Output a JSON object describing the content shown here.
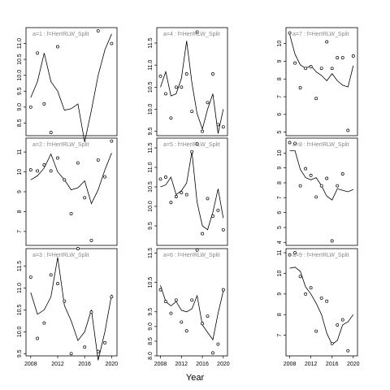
{
  "figure": {
    "xlabel": "Year"
  },
  "chart_data": [
    {
      "type": "scatter",
      "title": "a=1 : f=HerIRLW_Split",
      "x_ticks": [
        2008,
        2012,
        2016,
        2020
      ],
      "ylim": [
        8.1,
        11.5
      ],
      "yticks": [
        8.5,
        9.0,
        9.5,
        10.0,
        10.5,
        11.0
      ],
      "points": [
        {
          "x": 2008,
          "y": 9.0
        },
        {
          "x": 2009,
          "y": 10.7
        },
        {
          "x": 2010,
          "y": 9.1
        },
        {
          "x": 2011,
          "y": 8.2
        },
        {
          "x": 2012,
          "y": 10.9
        },
        {
          "x": 2018,
          "y": 11.4
        },
        {
          "x": 2020,
          "y": 11.0
        }
      ],
      "line": [
        {
          "x": 2008,
          "y": 9.3
        },
        {
          "x": 2009,
          "y": 9.8
        },
        {
          "x": 2010,
          "y": 10.7
        },
        {
          "x": 2011,
          "y": 9.8
        },
        {
          "x": 2012,
          "y": 9.5
        },
        {
          "x": 2013,
          "y": 8.9
        },
        {
          "x": 2014,
          "y": 8.95
        },
        {
          "x": 2015,
          "y": 9.1
        },
        {
          "x": 2016,
          "y": 7.9
        },
        {
          "x": 2017,
          "y": 8.9
        },
        {
          "x": 2018,
          "y": 10.0
        },
        {
          "x": 2019,
          "y": 10.8
        },
        {
          "x": 2020,
          "y": 11.3
        }
      ]
    },
    {
      "type": "scatter",
      "title": "a=4 : f=HerIRLW_Split",
      "x_ticks": [
        2008,
        2012,
        2016,
        2020
      ],
      "ylim": [
        9.4,
        11.85
      ],
      "yticks": [
        9.5,
        10.0,
        10.5,
        11.0,
        11.5
      ],
      "points": [
        {
          "x": 2008,
          "y": 10.75
        },
        {
          "x": 2009,
          "y": 10.35
        },
        {
          "x": 2010,
          "y": 9.8
        },
        {
          "x": 2011,
          "y": 10.5
        },
        {
          "x": 2012,
          "y": 10.5
        },
        {
          "x": 2013,
          "y": 10.8
        },
        {
          "x": 2014,
          "y": 9.95
        },
        {
          "x": 2015,
          "y": 11.75
        },
        {
          "x": 2016,
          "y": 9.5
        },
        {
          "x": 2017,
          "y": 10.15
        },
        {
          "x": 2018,
          "y": 10.8
        },
        {
          "x": 2019,
          "y": 9.65
        },
        {
          "x": 2020,
          "y": 9.6
        }
      ],
      "line": [
        {
          "x": 2008,
          "y": 10.5
        },
        {
          "x": 2009,
          "y": 10.85
        },
        {
          "x": 2010,
          "y": 10.3
        },
        {
          "x": 2011,
          "y": 10.35
        },
        {
          "x": 2012,
          "y": 10.7
        },
        {
          "x": 2013,
          "y": 11.55
        },
        {
          "x": 2014,
          "y": 10.6
        },
        {
          "x": 2015,
          "y": 9.9
        },
        {
          "x": 2016,
          "y": 9.55
        },
        {
          "x": 2017,
          "y": 10.0
        },
        {
          "x": 2018,
          "y": 10.35
        },
        {
          "x": 2019,
          "y": 9.45
        },
        {
          "x": 2020,
          "y": 10.0
        }
      ]
    },
    {
      "type": "scatter",
      "title": "a=7 : f=HerIRLW_Split",
      "x_ticks": [
        2008,
        2012,
        2016,
        2020
      ],
      "ylim": [
        4.8,
        10.9
      ],
      "yticks": [
        5,
        6,
        7,
        8,
        9,
        10
      ],
      "points": [
        {
          "x": 2008,
          "y": 10.6
        },
        {
          "x": 2009,
          "y": 8.9
        },
        {
          "x": 2010,
          "y": 7.5
        },
        {
          "x": 2011,
          "y": 8.6
        },
        {
          "x": 2012,
          "y": 8.7
        },
        {
          "x": 2013,
          "y": 6.9
        },
        {
          "x": 2014,
          "y": 8.6
        },
        {
          "x": 2015,
          "y": 10.1
        },
        {
          "x": 2016,
          "y": 8.6
        },
        {
          "x": 2017,
          "y": 9.2
        },
        {
          "x": 2018,
          "y": 9.2
        },
        {
          "x": 2019,
          "y": 5.1
        },
        {
          "x": 2020,
          "y": 9.3
        }
      ],
      "line": [
        {
          "x": 2008,
          "y": 10.5
        },
        {
          "x": 2009,
          "y": 9.4
        },
        {
          "x": 2010,
          "y": 8.8
        },
        {
          "x": 2011,
          "y": 8.6
        },
        {
          "x": 2012,
          "y": 8.75
        },
        {
          "x": 2013,
          "y": 8.4
        },
        {
          "x": 2014,
          "y": 8.2
        },
        {
          "x": 2015,
          "y": 7.9
        },
        {
          "x": 2016,
          "y": 8.3
        },
        {
          "x": 2017,
          "y": 7.9
        },
        {
          "x": 2018,
          "y": 7.65
        },
        {
          "x": 2019,
          "y": 7.55
        },
        {
          "x": 2020,
          "y": 8.75
        }
      ]
    },
    {
      "type": "scatter",
      "title": "a=2 : f=HerIRLW_Split",
      "x_ticks": [
        2008,
        2012,
        2016,
        2020
      ],
      "ylim": [
        6.3,
        11.7
      ],
      "yticks": [
        7,
        8,
        9,
        10,
        11
      ],
      "points": [
        {
          "x": 2008,
          "y": 10.1
        },
        {
          "x": 2009,
          "y": 10.05
        },
        {
          "x": 2010,
          "y": 10.35
        },
        {
          "x": 2011,
          "y": 10.05
        },
        {
          "x": 2012,
          "y": 10.7
        },
        {
          "x": 2013,
          "y": 9.6
        },
        {
          "x": 2014,
          "y": 7.9
        },
        {
          "x": 2015,
          "y": 10.45
        },
        {
          "x": 2016,
          "y": 8.7
        },
        {
          "x": 2017,
          "y": 6.55
        },
        {
          "x": 2018,
          "y": 10.6
        },
        {
          "x": 2019,
          "y": 9.75
        },
        {
          "x": 2020,
          "y": 11.55
        }
      ],
      "line": [
        {
          "x": 2008,
          "y": 9.6
        },
        {
          "x": 2009,
          "y": 9.8
        },
        {
          "x": 2010,
          "y": 10.2
        },
        {
          "x": 2011,
          "y": 10.9
        },
        {
          "x": 2012,
          "y": 10.0
        },
        {
          "x": 2013,
          "y": 9.6
        },
        {
          "x": 2014,
          "y": 9.1
        },
        {
          "x": 2015,
          "y": 9.2
        },
        {
          "x": 2016,
          "y": 9.55
        },
        {
          "x": 2017,
          "y": 8.4
        },
        {
          "x": 2018,
          "y": 9.1
        },
        {
          "x": 2019,
          "y": 10.1
        },
        {
          "x": 2020,
          "y": 10.95
        }
      ]
    },
    {
      "type": "scatter",
      "title": "a=5 : f=HerIRLW_Split",
      "x_ticks": [
        2008,
        2012,
        2016,
        2020
      ],
      "ylim": [
        9.0,
        11.75
      ],
      "yticks": [
        9.5,
        10.0,
        10.5,
        11.0,
        11.5
      ],
      "points": [
        {
          "x": 2008,
          "y": 10.7
        },
        {
          "x": 2009,
          "y": 10.75
        },
        {
          "x": 2010,
          "y": 10.1
        },
        {
          "x": 2011,
          "y": 10.25
        },
        {
          "x": 2012,
          "y": 10.35
        },
        {
          "x": 2013,
          "y": 10.3
        },
        {
          "x": 2014,
          "y": 11.4
        },
        {
          "x": 2015,
          "y": 11.6
        },
        {
          "x": 2016,
          "y": 9.3
        },
        {
          "x": 2017,
          "y": 10.2
        },
        {
          "x": 2018,
          "y": 9.75
        },
        {
          "x": 2019,
          "y": 9.9
        },
        {
          "x": 2020,
          "y": 9.4
        }
      ],
      "line": [
        {
          "x": 2008,
          "y": 10.5
        },
        {
          "x": 2009,
          "y": 10.55
        },
        {
          "x": 2010,
          "y": 10.75
        },
        {
          "x": 2011,
          "y": 10.3
        },
        {
          "x": 2012,
          "y": 10.4
        },
        {
          "x": 2013,
          "y": 10.6
        },
        {
          "x": 2014,
          "y": 11.4
        },
        {
          "x": 2015,
          "y": 10.1
        },
        {
          "x": 2016,
          "y": 9.5
        },
        {
          "x": 2017,
          "y": 9.4
        },
        {
          "x": 2018,
          "y": 9.85
        },
        {
          "x": 2019,
          "y": 10.45
        },
        {
          "x": 2020,
          "y": 9.7
        }
      ]
    },
    {
      "type": "scatter",
      "title": "a=8 : f=HerIRLW_Split",
      "x_ticks": [
        2008,
        2012,
        2016,
        2020
      ],
      "ylim": [
        3.8,
        11.0
      ],
      "yticks": [
        4,
        5,
        6,
        7,
        8,
        9,
        10
      ],
      "points": [
        {
          "x": 2008,
          "y": 10.7
        },
        {
          "x": 2009,
          "y": 10.65
        },
        {
          "x": 2010,
          "y": 7.8
        },
        {
          "x": 2011,
          "y": 8.95
        },
        {
          "x": 2012,
          "y": 8.5
        },
        {
          "x": 2013,
          "y": 7.05
        },
        {
          "x": 2014,
          "y": 7.8
        },
        {
          "x": 2015,
          "y": 8.3
        },
        {
          "x": 2016,
          "y": 4.1
        },
        {
          "x": 2017,
          "y": 7.8
        },
        {
          "x": 2018,
          "y": 8.6
        }
      ],
      "line": [
        {
          "x": 2008,
          "y": 10.15
        },
        {
          "x": 2009,
          "y": 10.15
        },
        {
          "x": 2010,
          "y": 8.9
        },
        {
          "x": 2011,
          "y": 8.35
        },
        {
          "x": 2012,
          "y": 8.2
        },
        {
          "x": 2013,
          "y": 8.35
        },
        {
          "x": 2014,
          "y": 7.8
        },
        {
          "x": 2015,
          "y": 7.1
        },
        {
          "x": 2016,
          "y": 6.85
        },
        {
          "x": 2017,
          "y": 7.6
        },
        {
          "x": 2018,
          "y": 7.5
        },
        {
          "x": 2019,
          "y": 7.4
        },
        {
          "x": 2020,
          "y": 7.55
        }
      ]
    },
    {
      "type": "scatter",
      "title": "a=3 : f=HerIRLW_Split",
      "x_ticks": [
        2008,
        2012,
        2016,
        2020
      ],
      "ylim": [
        9.45,
        11.9
      ],
      "yticks": [
        9.5,
        10.0,
        10.5,
        11.0,
        11.5
      ],
      "points": [
        {
          "x": 2008,
          "y": 11.25
        },
        {
          "x": 2009,
          "y": 9.85
        },
        {
          "x": 2010,
          "y": 10.2
        },
        {
          "x": 2011,
          "y": 11.3
        },
        {
          "x": 2012,
          "y": 11.1
        },
        {
          "x": 2013,
          "y": 10.7
        },
        {
          "x": 2014,
          "y": 9.5
        },
        {
          "x": 2015,
          "y": 11.9
        },
        {
          "x": 2016,
          "y": 9.65
        },
        {
          "x": 2017,
          "y": 10.45
        },
        {
          "x": 2018,
          "y": 9.55
        },
        {
          "x": 2019,
          "y": 9.75
        },
        {
          "x": 2020,
          "y": 10.8
        }
      ],
      "line": [
        {
          "x": 2008,
          "y": 10.9
        },
        {
          "x": 2009,
          "y": 10.4
        },
        {
          "x": 2010,
          "y": 10.5
        },
        {
          "x": 2011,
          "y": 10.8
        },
        {
          "x": 2012,
          "y": 11.7
        },
        {
          "x": 2013,
          "y": 10.6
        },
        {
          "x": 2014,
          "y": 10.25
        },
        {
          "x": 2015,
          "y": 9.8
        },
        {
          "x": 2016,
          "y": 10.0
        },
        {
          "x": 2017,
          "y": 10.5
        },
        {
          "x": 2018,
          "y": 9.35
        },
        {
          "x": 2019,
          "y": 10.0
        },
        {
          "x": 2020,
          "y": 10.85
        }
      ]
    },
    {
      "type": "scatter",
      "title": "a=6 : f=HerIRLW_Split",
      "x_ticks": [
        2008,
        2012,
        2016,
        2020
      ],
      "ylim": [
        8.0,
        11.65
      ],
      "yticks": [
        8.0,
        8.5,
        9.0,
        9.5,
        10.5,
        11.5
      ],
      "points": [
        {
          "x": 2008,
          "y": 10.25
        },
        {
          "x": 2009,
          "y": 9.85
        },
        {
          "x": 2010,
          "y": 9.45
        },
        {
          "x": 2011,
          "y": 9.9
        },
        {
          "x": 2012,
          "y": 9.15
        },
        {
          "x": 2013,
          "y": 8.85
        },
        {
          "x": 2014,
          "y": 9.9
        },
        {
          "x": 2015,
          "y": 11.6
        },
        {
          "x": 2016,
          "y": 9.1
        },
        {
          "x": 2017,
          "y": 9.35
        },
        {
          "x": 2018,
          "y": 8.1
        },
        {
          "x": 2019,
          "y": 8.4
        },
        {
          "x": 2020,
          "y": 10.25
        }
      ],
      "line": [
        {
          "x": 2008,
          "y": 10.4
        },
        {
          "x": 2009,
          "y": 9.85
        },
        {
          "x": 2010,
          "y": 9.7
        },
        {
          "x": 2011,
          "y": 9.85
        },
        {
          "x": 2012,
          "y": 9.55
        },
        {
          "x": 2013,
          "y": 9.5
        },
        {
          "x": 2014,
          "y": 9.6
        },
        {
          "x": 2015,
          "y": 10.05
        },
        {
          "x": 2016,
          "y": 9.05
        },
        {
          "x": 2017,
          "y": 8.8
        },
        {
          "x": 2018,
          "y": 8.55
        },
        {
          "x": 2019,
          "y": 9.45
        },
        {
          "x": 2020,
          "y": 10.2
        }
      ]
    },
    {
      "type": "scatter",
      "title": "a=9 : f=HerIRLW_Split",
      "x_ticks": [
        2008,
        2012,
        2016,
        2020
      ],
      "ylim": [
        6.0,
        11.2
      ],
      "yticks": [
        7,
        8,
        9,
        10,
        11
      ],
      "points": [
        {
          "x": 2008,
          "y": 10.9
        },
        {
          "x": 2009,
          "y": 11.0
        },
        {
          "x": 2010,
          "y": 9.85
        },
        {
          "x": 2011,
          "y": 9.0
        },
        {
          "x": 2012,
          "y": 9.3
        },
        {
          "x": 2013,
          "y": 7.2
        },
        {
          "x": 2014,
          "y": 8.8
        },
        {
          "x": 2015,
          "y": 8.65
        },
        {
          "x": 2016,
          "y": 6.6
        },
        {
          "x": 2017,
          "y": 7.5
        },
        {
          "x": 2018,
          "y": 7.75
        },
        {
          "x": 2019,
          "y": 6.25
        }
      ],
      "line": [
        {
          "x": 2008,
          "y": 10.25
        },
        {
          "x": 2009,
          "y": 10.3
        },
        {
          "x": 2010,
          "y": 10.1
        },
        {
          "x": 2011,
          "y": 9.35
        },
        {
          "x": 2012,
          "y": 9.0
        },
        {
          "x": 2013,
          "y": 8.55
        },
        {
          "x": 2014,
          "y": 8.0
        },
        {
          "x": 2015,
          "y": 7.1
        },
        {
          "x": 2016,
          "y": 6.55
        },
        {
          "x": 2017,
          "y": 6.75
        },
        {
          "x": 2018,
          "y": 7.5
        },
        {
          "x": 2019,
          "y": 7.65
        },
        {
          "x": 2020,
          "y": 8.0
        }
      ]
    }
  ]
}
